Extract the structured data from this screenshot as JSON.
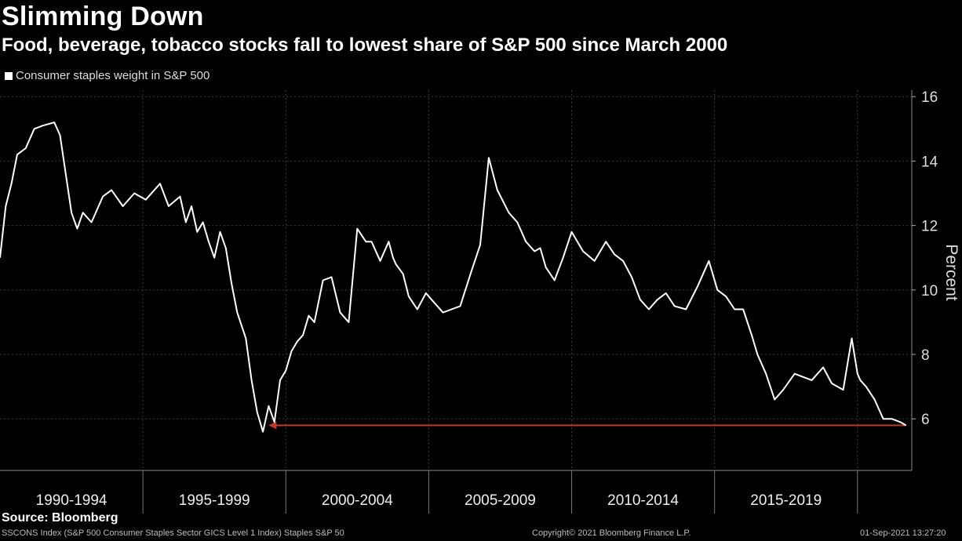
{
  "header": {
    "title": "Slimming Down",
    "subtitle": "Food, beverage, tobacco stocks fall to lowest share of S&P 500 since March 2000"
  },
  "footer": {
    "source": "Source: Bloomberg",
    "index_note": "SSCONS Index (S&P 500 Consumer Staples Sector GICS Level 1 Index) Staples S&P 50",
    "copyright": "Copyright© 2021 Bloomberg Finance L.P.",
    "timestamp": "01-Sep-2021 13:27:20"
  },
  "colors": {
    "background": "#000000",
    "line": "#ffffff",
    "grid": "#3a3a3a",
    "arrow": "#c0392b"
  },
  "chart_data": {
    "type": "line",
    "title": "Slimming Down",
    "subtitle": "Food, beverage, tobacco stocks fall to lowest share of S&P 500 since March 2000",
    "xlabel": "",
    "ylabel": "Percent",
    "ylim": [
      4.4,
      16.2
    ],
    "yticks": [
      6,
      8,
      10,
      12,
      14,
      16
    ],
    "xlim": [
      1990.0,
      2021.9
    ],
    "categories": [
      "1990-1994",
      "1995-1999",
      "2000-2004",
      "2005-2009",
      "2010-2014",
      "2015-2019"
    ],
    "grid": true,
    "y_axis_side": "right",
    "legend": {
      "position": "top-left",
      "entries": [
        "Consumer staples weight in S&P 500"
      ]
    },
    "series": [
      {
        "name": "Consumer staples weight in S&P 500",
        "x": [
          1990.0,
          1990.2,
          1990.4,
          1990.6,
          1990.9,
          1991.2,
          1991.5,
          1991.9,
          1992.1,
          1992.3,
          1992.5,
          1992.7,
          1992.9,
          1993.2,
          1993.6,
          1993.9,
          1994.3,
          1994.7,
          1995.1,
          1995.6,
          1995.9,
          1996.3,
          1996.5,
          1996.7,
          1996.9,
          1997.1,
          1997.3,
          1997.5,
          1997.7,
          1997.9,
          1998.1,
          1998.3,
          1998.6,
          1998.8,
          1999.0,
          1999.2,
          1999.4,
          1999.6,
          1999.8,
          2000.0,
          2000.2,
          2000.4,
          2000.6,
          2000.8,
          2001.0,
          2001.3,
          2001.6,
          2001.9,
          2002.2,
          2002.5,
          2002.8,
          2003.0,
          2003.3,
          2003.6,
          2003.75,
          2003.85,
          2004.1,
          2004.3,
          2004.6,
          2004.9,
          2005.2,
          2005.5,
          2005.8,
          2006.1,
          2006.5,
          2006.8,
          2007.1,
          2007.4,
          2007.8,
          2008.1,
          2008.4,
          2008.7,
          2008.9,
          2009.1,
          2009.4,
          2009.7,
          2010.0,
          2010.4,
          2010.8,
          2011.2,
          2011.5,
          2011.8,
          2012.1,
          2012.4,
          2012.7,
          2013.0,
          2013.3,
          2013.6,
          2014.0,
          2014.4,
          2014.8,
          2015.1,
          2015.4,
          2015.7,
          2016.0,
          2016.3,
          2016.5,
          2016.8,
          2017.1,
          2017.4,
          2017.8,
          2018.1,
          2018.4,
          2018.8,
          2019.1,
          2019.5,
          2019.8,
          2020.0,
          2020.1,
          2020.3,
          2020.6,
          2020.9,
          2021.2,
          2021.5,
          2021.7
        ],
        "values": [
          11.0,
          12.6,
          13.3,
          14.2,
          14.4,
          15.0,
          15.1,
          15.2,
          14.8,
          13.6,
          12.4,
          11.9,
          12.4,
          12.1,
          12.9,
          13.1,
          12.6,
          13.0,
          12.8,
          13.3,
          12.6,
          12.9,
          12.1,
          12.6,
          11.8,
          12.1,
          11.5,
          11.0,
          11.8,
          11.3,
          10.2,
          9.3,
          8.5,
          7.2,
          6.2,
          5.6,
          6.4,
          5.9,
          7.2,
          7.5,
          8.1,
          8.4,
          8.6,
          9.2,
          9.0,
          10.3,
          10.4,
          9.3,
          9.0,
          11.9,
          11.5,
          11.5,
          10.9,
          11.5,
          11.0,
          10.8,
          10.5,
          9.8,
          9.4,
          9.9,
          9.6,
          9.3,
          9.4,
          9.5,
          10.6,
          11.4,
          14.1,
          13.1,
          12.4,
          12.1,
          11.5,
          11.2,
          11.3,
          10.7,
          10.3,
          11.0,
          11.8,
          11.2,
          10.9,
          11.5,
          11.1,
          10.9,
          10.4,
          9.7,
          9.4,
          9.7,
          9.9,
          9.5,
          9.4,
          10.1,
          10.9,
          10.0,
          9.8,
          9.4,
          9.4,
          8.6,
          8.0,
          7.4,
          6.6,
          6.9,
          7.4,
          7.3,
          7.2,
          7.6,
          7.1,
          6.9,
          8.5,
          7.4,
          7.2,
          7.0,
          6.6,
          6.0,
          6.0,
          5.9,
          5.8
        ]
      }
    ],
    "annotations": [
      {
        "type": "arrow",
        "from": [
          2021.7,
          5.8
        ],
        "to": [
          1999.4,
          5.8
        ],
        "color": "#c0392b"
      }
    ]
  }
}
